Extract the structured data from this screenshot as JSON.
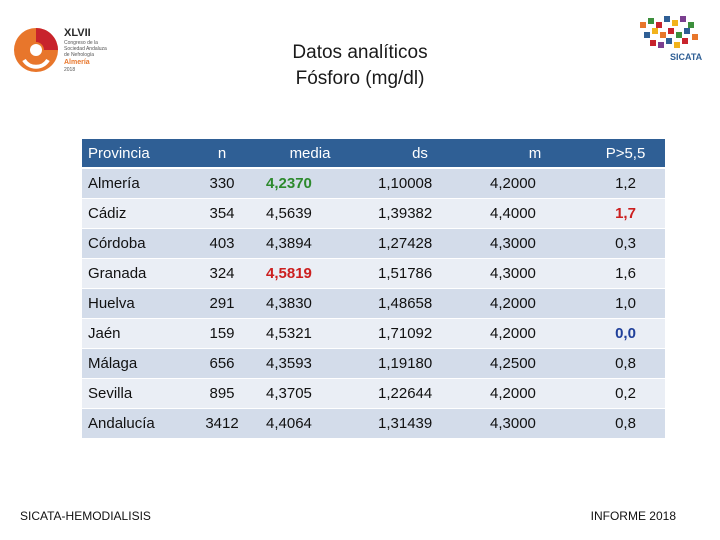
{
  "header": {
    "title_line1": "Datos analíticos",
    "title_line2": "Fósforo (mg/dl)"
  },
  "logos": {
    "left": {
      "icon": "congress-logo",
      "roman": "XLVII",
      "lines": [
        "Congreso de la",
        "Sociedad Andaluza",
        "de Nefrología"
      ],
      "city": "Almería",
      "date": "2018"
    },
    "right": {
      "icon": "sicata-logo",
      "text": "SICATA"
    }
  },
  "table": {
    "headers": [
      "Provincia",
      "n",
      "media",
      "ds",
      "m",
      "P>5,5"
    ],
    "rows": [
      {
        "provincia": "Almería",
        "n": "330",
        "media": "4,2370",
        "ds": "1,10008",
        "m": "4,2000",
        "p": "1,2"
      },
      {
        "provincia": "Cádiz",
        "n": "354",
        "media": "4,5639",
        "ds": "1,39382",
        "m": "4,4000",
        "p": "1,7"
      },
      {
        "provincia": "Córdoba",
        "n": "403",
        "media": "4,3894",
        "ds": "1,27428",
        "m": "4,3000",
        "p": "0,3"
      },
      {
        "provincia": "Granada",
        "n": "324",
        "media": "4,5819",
        "ds": "1,51786",
        "m": "4,3000",
        "p": "1,6"
      },
      {
        "provincia": "Huelva",
        "n": "291",
        "media": "4,3830",
        "ds": "1,48658",
        "m": "4,2000",
        "p": "1,0"
      },
      {
        "provincia": "Jaén",
        "n": "159",
        "media": "4,5321",
        "ds": "1,71092",
        "m": "4,2000",
        "p": "0,0"
      },
      {
        "provincia": "Málaga",
        "n": "656",
        "media": "4,3593",
        "ds": "1,19180",
        "m": "4,2500",
        "p": "0,8"
      },
      {
        "provincia": "Sevilla",
        "n": "895",
        "media": "4,3705",
        "ds": "1,22644",
        "m": "4,2000",
        "p": "0,2"
      },
      {
        "provincia": "Andalucía",
        "n": "3412",
        "media": "4,4064",
        "ds": "1,31439",
        "m": "4,3000",
        "p": "0,8"
      }
    ],
    "highlight_colors": {
      "green": "#2d8a2d",
      "red": "#cc1f1f",
      "blue": "#1f3f9a"
    }
  },
  "footer": {
    "left": "SICATA-HEMODIALISIS",
    "right": "INFORME 2018"
  }
}
